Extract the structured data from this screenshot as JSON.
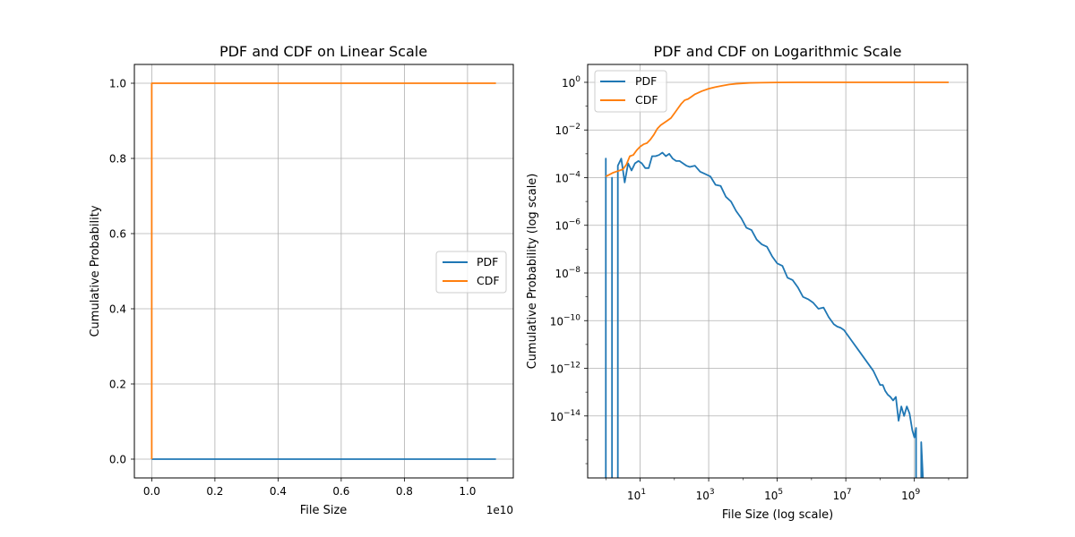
{
  "chart_data": [
    {
      "type": "line",
      "title": "PDF and CDF on Linear Scale",
      "xlabel": "File Size",
      "ylabel": "Cumulative Probability",
      "x_offset_label": "1e10",
      "xscale": "linear",
      "yscale": "linear",
      "xlim": [
        -0.055,
        1.145
      ],
      "ylim": [
        -0.05,
        1.05
      ],
      "x_units": "1e10",
      "xticks": [
        0.0,
        0.2,
        0.4,
        0.6,
        0.8,
        1.0
      ],
      "xtick_labels": [
        "0.0",
        "0.2",
        "0.4",
        "0.6",
        "0.8",
        "1.0"
      ],
      "yticks": [
        0.0,
        0.2,
        0.4,
        0.6,
        0.8,
        1.0
      ],
      "ytick_labels": [
        "0.0",
        "0.2",
        "0.4",
        "0.6",
        "0.8",
        "1.0"
      ],
      "grid": true,
      "legend": "center-right",
      "series": [
        {
          "name": "PDF",
          "color": "#1f77b4",
          "x": [
            0.0,
            1.09
          ],
          "y": [
            0.0,
            0.0
          ]
        },
        {
          "name": "CDF",
          "color": "#ff7f0e",
          "x": [
            0.0,
            0.0,
            0.003,
            1.09
          ],
          "y": [
            0.0,
            1.0,
            1.0,
            1.0
          ]
        }
      ]
    },
    {
      "type": "line",
      "title": "PDF and CDF on Logarithmic Scale",
      "xlabel": "File Size (log scale)",
      "ylabel": "Cumulative Probability (log scale)",
      "xscale": "log",
      "yscale": "log",
      "xlim_log10": [
        -0.53,
        10.55
      ],
      "ylim_log10": [
        -16.6,
        0.75
      ],
      "xticks_log10": [
        1,
        3,
        5,
        7,
        9
      ],
      "xtick_labels": [
        {
          "base": "10",
          "exp": "1"
        },
        {
          "base": "10",
          "exp": "3"
        },
        {
          "base": "10",
          "exp": "5"
        },
        {
          "base": "10",
          "exp": "7"
        },
        {
          "base": "10",
          "exp": "9"
        }
      ],
      "yticks_log10": [
        0,
        -2,
        -4,
        -6,
        -8,
        -10,
        -12,
        -14
      ],
      "ytick_labels": [
        {
          "base": "10",
          "exp": "0"
        },
        {
          "base": "10",
          "exp": "−2"
        },
        {
          "base": "10",
          "exp": "−4"
        },
        {
          "base": "10",
          "exp": "−6"
        },
        {
          "base": "10",
          "exp": "−8"
        },
        {
          "base": "10",
          "exp": "−10"
        },
        {
          "base": "10",
          "exp": "−12"
        },
        {
          "base": "10",
          "exp": "−14"
        }
      ],
      "grid": true,
      "legend": "top-left",
      "series": [
        {
          "name": "PDF",
          "color": "#1f77b4",
          "x_log10": [
            0,
            0,
            0,
            0.18,
            0.18,
            0.18,
            0.35,
            0.35,
            0.35,
            0.45,
            0.55,
            0.65,
            0.75,
            0.85,
            0.95,
            1.05,
            1.15,
            1.25,
            1.35,
            1.45,
            1.55,
            1.65,
            1.75,
            1.85,
            1.95,
            2.05,
            2.15,
            2.25,
            2.35,
            2.45,
            2.6,
            2.75,
            2.9,
            3.05,
            3.2,
            3.35,
            3.5,
            3.65,
            3.8,
            3.95,
            4.1,
            4.25,
            4.4,
            4.55,
            4.7,
            4.85,
            5.0,
            5.15,
            5.3,
            5.45,
            5.6,
            5.75,
            5.9,
            6.05,
            6.2,
            6.35,
            6.5,
            6.65,
            6.75,
            6.85,
            6.95,
            7.05,
            7.2,
            7.35,
            7.5,
            7.65,
            7.8,
            7.9,
            8.0,
            8.08,
            8.15,
            8.22,
            8.3,
            8.38,
            8.46,
            8.54,
            8.62,
            8.7,
            8.78,
            8.86,
            8.94,
            9.0,
            9.05,
            9.05,
            9.05,
            9.1,
            9.2,
            9.2,
            9.2,
            9.28,
            9.28
          ],
          "y_log10": [
            -17.5,
            -3.2,
            -17.5,
            -17.5,
            -4.0,
            -17.5,
            -17.5,
            -4.3,
            -3.5,
            -3.2,
            -4.2,
            -3.4,
            -3.7,
            -3.4,
            -3.3,
            -3.4,
            -3.6,
            -3.6,
            -3.1,
            -3.1,
            -3.05,
            -2.95,
            -3.1,
            -3.0,
            -3.2,
            -3.3,
            -3.3,
            -3.4,
            -3.5,
            -3.55,
            -3.5,
            -3.75,
            -3.85,
            -3.95,
            -4.3,
            -4.35,
            -4.8,
            -5.0,
            -5.4,
            -5.7,
            -6.1,
            -6.2,
            -6.6,
            -6.8,
            -6.9,
            -7.3,
            -7.6,
            -7.7,
            -8.2,
            -8.3,
            -8.6,
            -9.0,
            -9.1,
            -9.25,
            -9.5,
            -9.45,
            -9.85,
            -10.15,
            -10.25,
            -10.3,
            -10.4,
            -10.6,
            -10.9,
            -11.2,
            -11.5,
            -11.8,
            -12.1,
            -12.4,
            -12.7,
            -12.7,
            -12.95,
            -13.1,
            -13.2,
            -13.35,
            -13.2,
            -14.2,
            -13.6,
            -14.0,
            -13.6,
            -13.9,
            -14.6,
            -14.9,
            -14.5,
            -15.1,
            -17.5,
            -17.5,
            -17.5,
            -15.2,
            -15.1,
            -17.5,
            -17.5
          ]
        },
        {
          "name": "CDF",
          "color": "#ff7f0e",
          "x_log10": [
            0,
            0.2,
            0.3,
            0.4,
            0.5,
            0.6,
            0.7,
            0.8,
            0.9,
            1.0,
            1.1,
            1.2,
            1.3,
            1.4,
            1.5,
            1.6,
            1.7,
            1.8,
            1.9,
            2.0,
            2.1,
            2.2,
            2.3,
            2.4,
            2.5,
            2.6,
            2.8,
            3.0,
            3.2,
            3.4,
            3.6,
            3.8,
            4.0,
            4.2,
            4.5,
            5.0,
            6.0,
            7.0,
            8.0,
            9.0,
            10.0
          ],
          "y_log10": [
            -3.95,
            -3.8,
            -3.75,
            -3.7,
            -3.65,
            -3.45,
            -3.1,
            -3.05,
            -2.85,
            -2.7,
            -2.6,
            -2.55,
            -2.4,
            -2.2,
            -1.95,
            -1.8,
            -1.7,
            -1.6,
            -1.5,
            -1.3,
            -1.1,
            -0.9,
            -0.75,
            -0.7,
            -0.6,
            -0.5,
            -0.37,
            -0.27,
            -0.2,
            -0.14,
            -0.09,
            -0.06,
            -0.04,
            -0.025,
            -0.015,
            -0.005,
            0,
            0,
            0,
            0,
            0
          ]
        }
      ]
    }
  ]
}
